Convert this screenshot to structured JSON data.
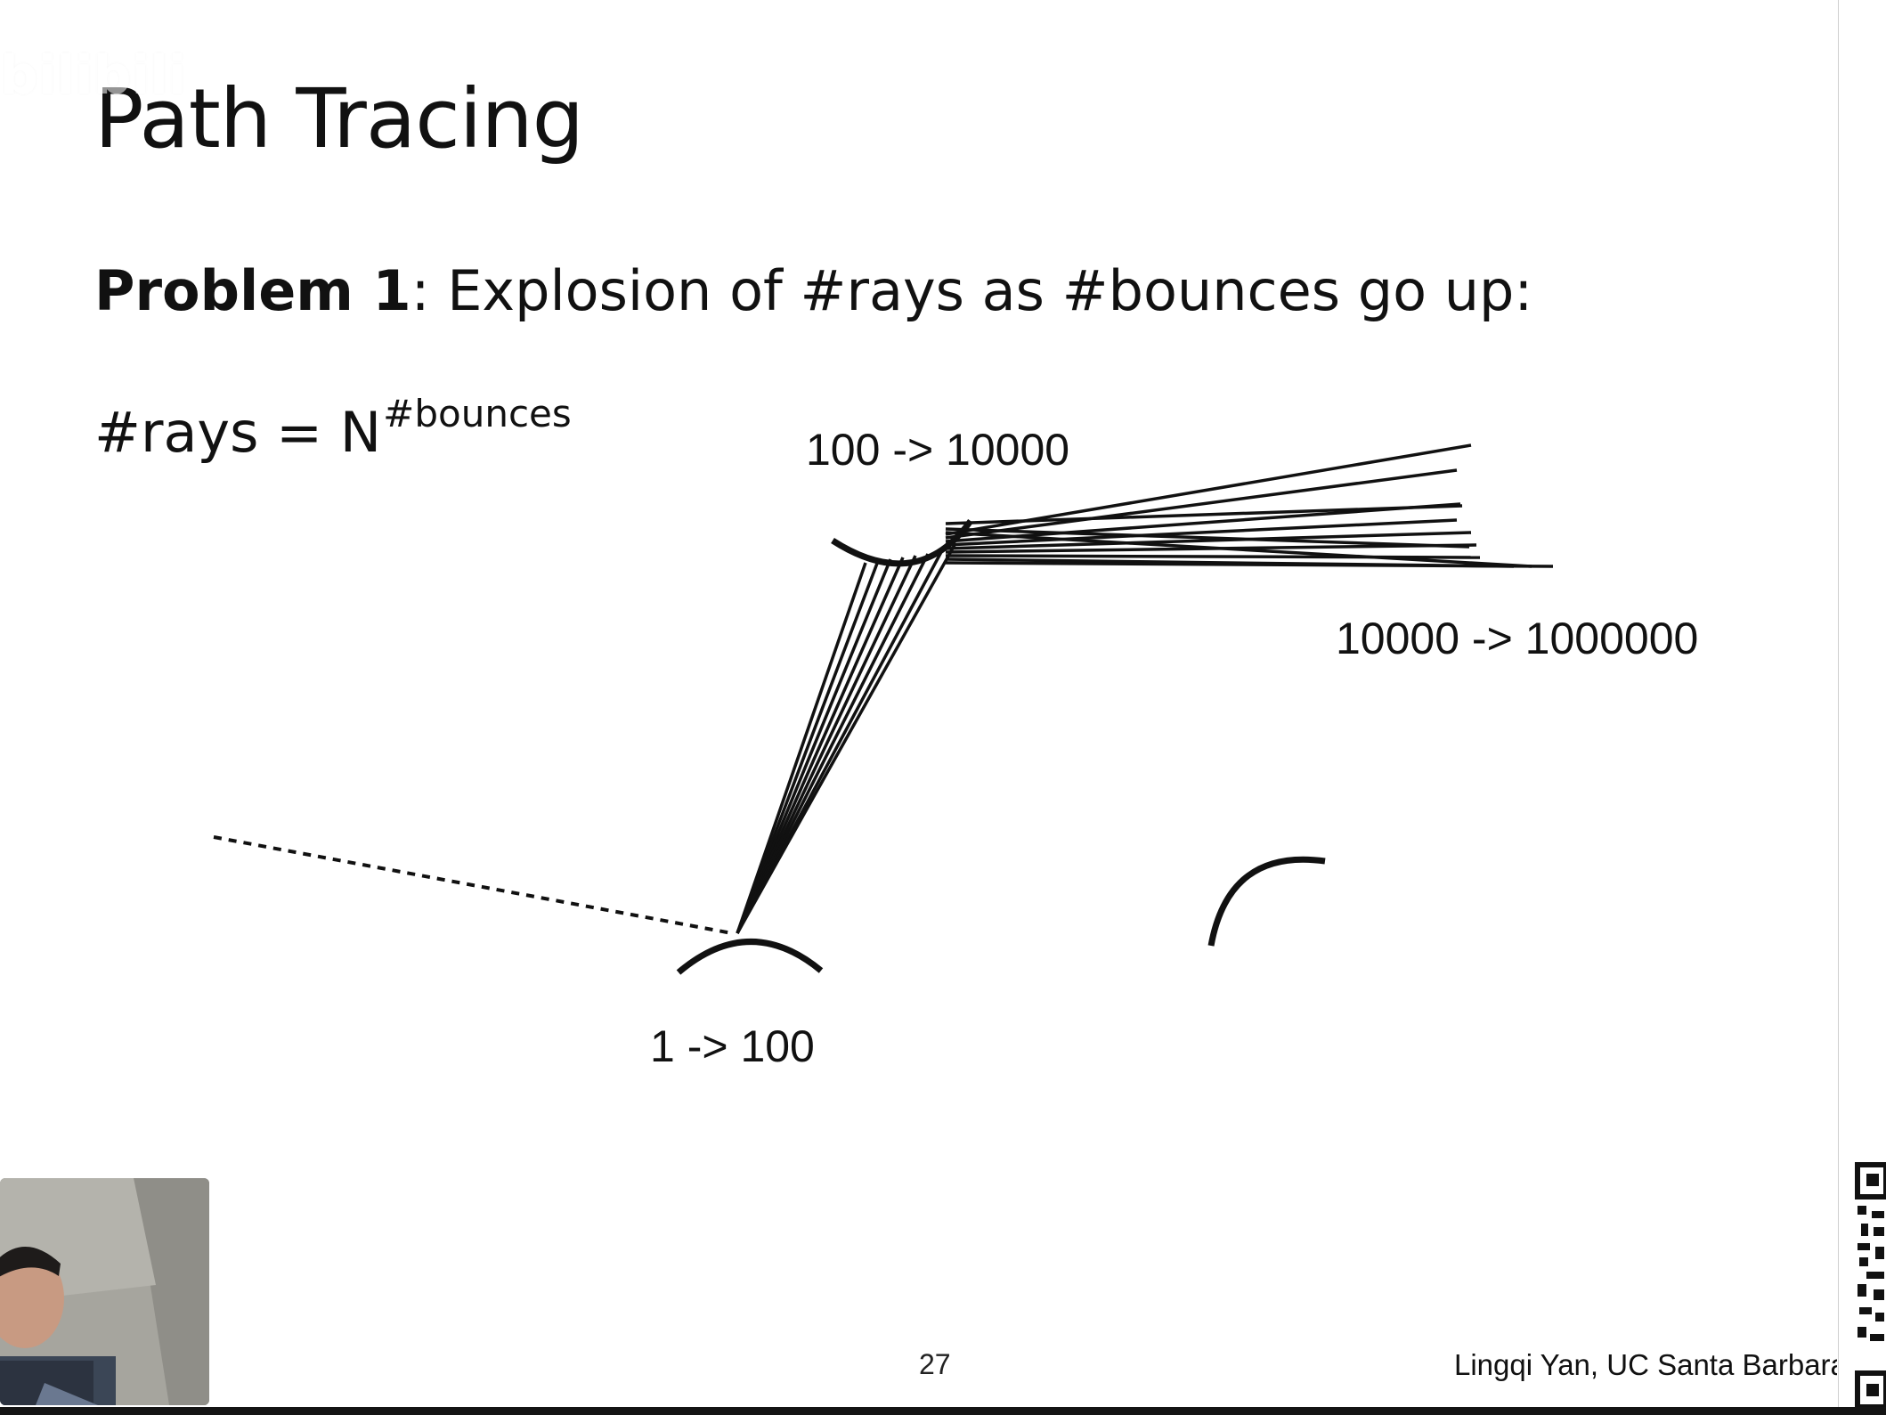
{
  "slide": {
    "title": "Path Tracing",
    "watermark": "bilibili",
    "problem_bold": "Problem 1",
    "problem_rest": ": Explosion of #rays as #bounces go up:",
    "formula_base": "#rays = N",
    "formula_exponent": "#bounces",
    "page_number": "27",
    "author": "Lingqi Yan, UC Santa Barbara"
  },
  "diagram": {
    "label_bounce1": "1 -> 100",
    "label_bounce2": "100 -> 10000",
    "label_bounce3": "10000 -> 1000000"
  }
}
